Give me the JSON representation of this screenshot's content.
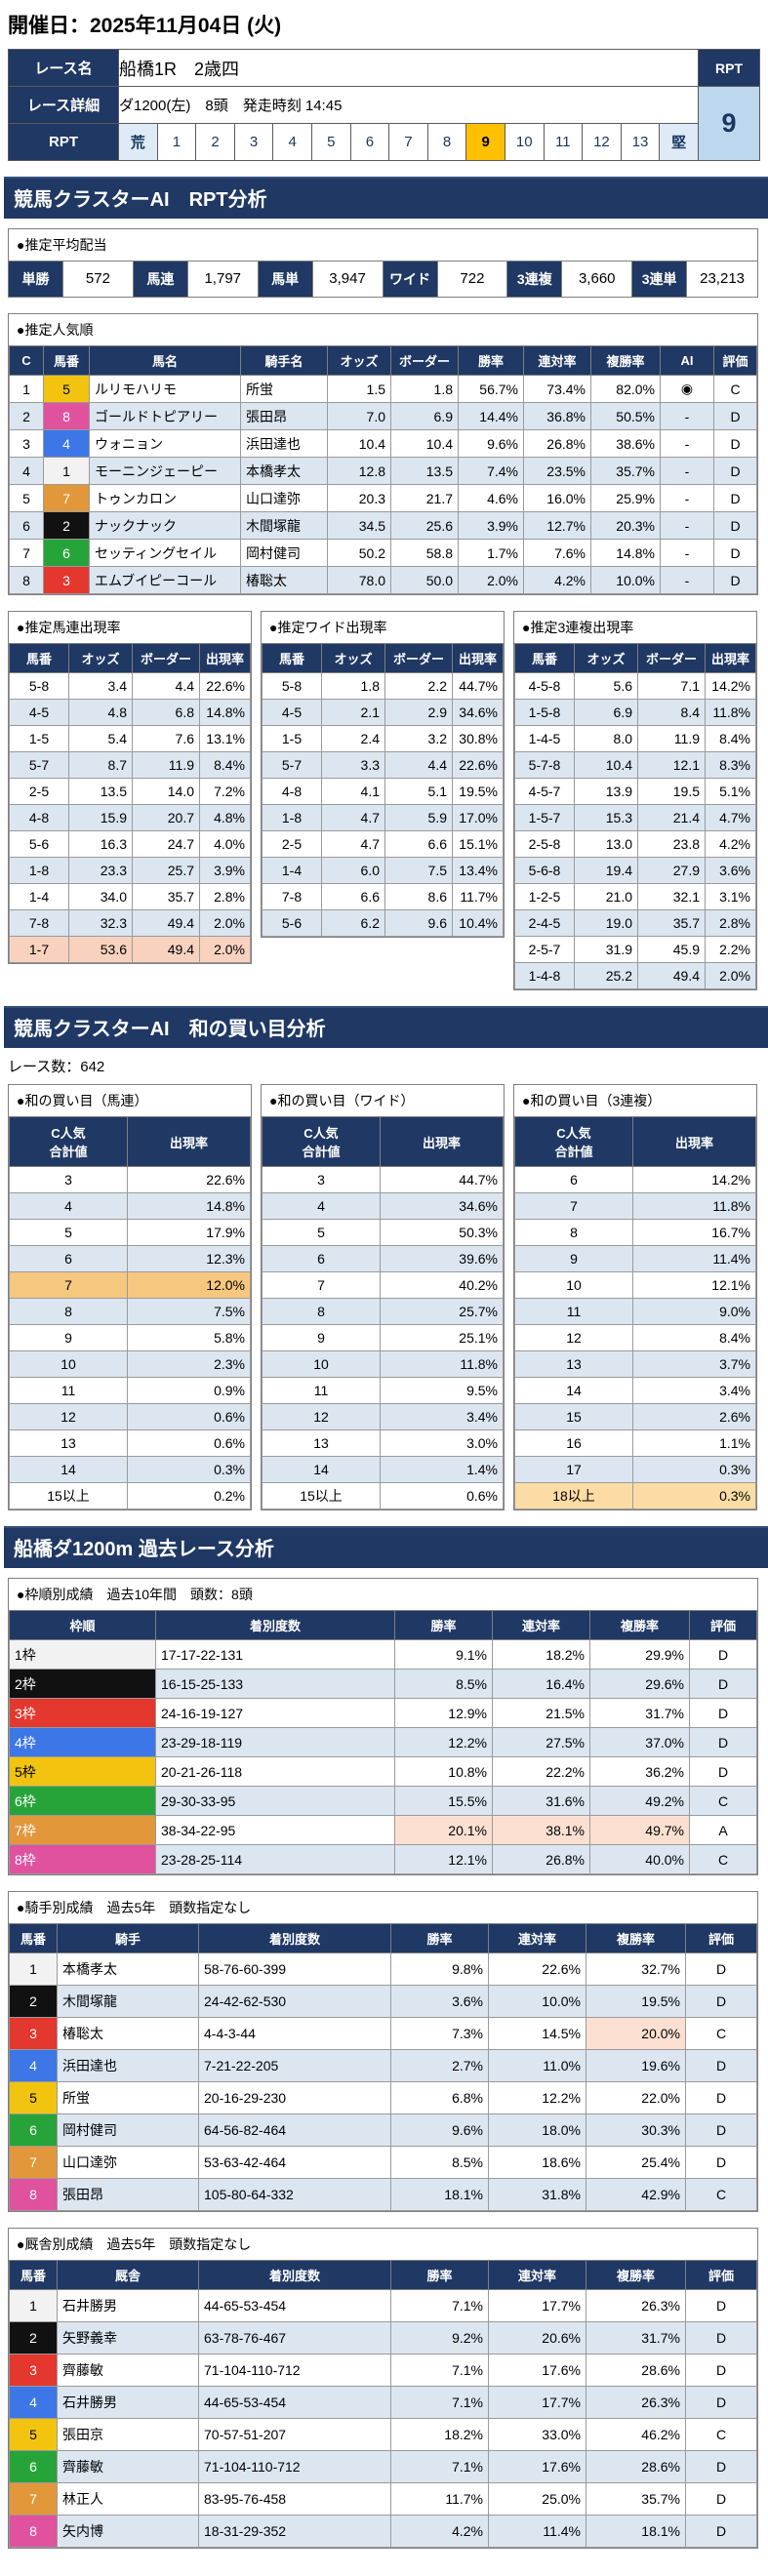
{
  "page": {
    "date_title": "開催日：2025年11月04日 (火)"
  },
  "colors": {
    "navy": "#1F3864",
    "row_alt": "#DCE6F1",
    "rpt_selected_bg": "#FFC000",
    "rpt_value_bg": "#BDD7EE",
    "highlight_salmon": "#F8D2BE",
    "highlight_amber": "#F6C77E",
    "highlight_orange": "#ED7D31",
    "highlight_peach": "#FBDCA4",
    "waku": {
      "1": "#F2F2F2",
      "2": "#111111",
      "3": "#E4372E",
      "4": "#3D76E6",
      "5": "#F2C40F",
      "6": "#27A439",
      "7": "#E2973B",
      "8": "#E0519E"
    }
  },
  "race_info": {
    "name_label": "レース名",
    "name": "船橋1R　2歳四",
    "detail_label": "レース詳細",
    "detail": "ダ1200(左)　8頭　発走時刻 14:45",
    "rpt_label": "RPT",
    "rpt_value": "9",
    "rpt_selected": "9",
    "rpt_scale": [
      "荒",
      "1",
      "2",
      "3",
      "4",
      "5",
      "6",
      "7",
      "8",
      "9",
      "10",
      "11",
      "12",
      "13",
      "堅"
    ]
  },
  "rpt_section": {
    "banner": "競馬クラスターAI　RPT分析",
    "payout": {
      "title": "●推定平均配当",
      "items": [
        {
          "label": "単勝",
          "value": "572"
        },
        {
          "label": "馬連",
          "value": "1,797"
        },
        {
          "label": "馬単",
          "value": "3,947"
        },
        {
          "label": "ワイド",
          "value": "722"
        },
        {
          "label": "3連複",
          "value": "3,660"
        },
        {
          "label": "3連単",
          "value": "23,213"
        }
      ]
    },
    "popularity": {
      "title": "●推定人気順",
      "headers": [
        "C",
        "馬番",
        "馬名",
        "騎手名",
        "オッズ",
        "ボーダー",
        "勝率",
        "連対率",
        "複勝率",
        "AI",
        "評価"
      ],
      "rows": [
        {
          "c": "1",
          "num": "5",
          "horse": "ルリモハリモ",
          "jockey": "所蛍",
          "odds": "1.5",
          "border": "1.8",
          "win": "56.7%",
          "ren": "73.4%",
          "fuku": "82.0%",
          "ai": "◉",
          "eval": "C"
        },
        {
          "c": "2",
          "num": "8",
          "horse": "ゴールドトピアリー",
          "jockey": "張田昂",
          "odds": "7.0",
          "border": "6.9",
          "win": "14.4%",
          "ren": "36.8%",
          "fuku": "50.5%",
          "ai": "-",
          "eval": "D"
        },
        {
          "c": "3",
          "num": "4",
          "horse": "ウォニョン",
          "jockey": "浜田達也",
          "odds": "10.4",
          "border": "10.4",
          "win": "9.6%",
          "ren": "26.8%",
          "fuku": "38.6%",
          "ai": "-",
          "eval": "D"
        },
        {
          "c": "4",
          "num": "1",
          "horse": "モーニンジェーピー",
          "jockey": "本橋孝太",
          "odds": "12.8",
          "border": "13.5",
          "win": "7.4%",
          "ren": "23.5%",
          "fuku": "35.7%",
          "ai": "-",
          "eval": "D"
        },
        {
          "c": "5",
          "num": "7",
          "horse": "トゥンカロン",
          "jockey": "山口達弥",
          "odds": "20.3",
          "border": "21.7",
          "win": "4.6%",
          "ren": "16.0%",
          "fuku": "25.9%",
          "ai": "-",
          "eval": "D"
        },
        {
          "c": "6",
          "num": "2",
          "horse": "ナックナック",
          "jockey": "木間塚龍",
          "odds": "34.5",
          "border": "25.6",
          "win": "3.9%",
          "ren": "12.7%",
          "fuku": "20.3%",
          "ai": "-",
          "eval": "D"
        },
        {
          "c": "7",
          "num": "6",
          "horse": "セッティングセイル",
          "jockey": "岡村健司",
          "odds": "50.2",
          "border": "58.8",
          "win": "1.7%",
          "ren": "7.6%",
          "fuku": "14.8%",
          "ai": "-",
          "eval": "D"
        },
        {
          "c": "8",
          "num": "3",
          "horse": "エムブイピーコール",
          "jockey": "椿聡太",
          "odds": "78.0",
          "border": "50.0",
          "win": "2.0%",
          "ren": "4.2%",
          "fuku": "10.0%",
          "ai": "-",
          "eval": "D"
        }
      ]
    },
    "umaren": {
      "title": "●推定馬連出現率",
      "headers": [
        "馬番",
        "オッズ",
        "ボーダー",
        "出現率"
      ],
      "highlight": "1-7",
      "rows": [
        [
          "5-8",
          "3.4",
          "4.4",
          "22.6%"
        ],
        [
          "4-5",
          "4.8",
          "6.8",
          "14.8%"
        ],
        [
          "1-5",
          "5.4",
          "7.6",
          "13.1%"
        ],
        [
          "5-7",
          "8.7",
          "11.9",
          "8.4%"
        ],
        [
          "2-5",
          "13.5",
          "14.0",
          "7.2%"
        ],
        [
          "4-8",
          "15.9",
          "20.7",
          "4.8%"
        ],
        [
          "5-6",
          "16.3",
          "24.7",
          "4.0%"
        ],
        [
          "1-8",
          "23.3",
          "25.7",
          "3.9%"
        ],
        [
          "1-4",
          "34.0",
          "35.7",
          "2.8%"
        ],
        [
          "7-8",
          "32.3",
          "49.4",
          "2.0%"
        ],
        [
          "1-7",
          "53.6",
          "49.4",
          "2.0%"
        ]
      ]
    },
    "wide": {
      "title": "●推定ワイド出現率",
      "headers": [
        "馬番",
        "オッズ",
        "ボーダー",
        "出現率"
      ],
      "rows": [
        [
          "5-8",
          "1.8",
          "2.2",
          "44.7%"
        ],
        [
          "4-5",
          "2.1",
          "2.9",
          "34.6%"
        ],
        [
          "1-5",
          "2.4",
          "3.2",
          "30.8%"
        ],
        [
          "5-7",
          "3.3",
          "4.4",
          "22.6%"
        ],
        [
          "4-8",
          "4.1",
          "5.1",
          "19.5%"
        ],
        [
          "1-8",
          "4.7",
          "5.9",
          "17.0%"
        ],
        [
          "2-5",
          "4.7",
          "6.6",
          "15.1%"
        ],
        [
          "1-4",
          "6.0",
          "7.5",
          "13.4%"
        ],
        [
          "7-8",
          "6.6",
          "8.6",
          "11.7%"
        ],
        [
          "5-6",
          "6.2",
          "9.6",
          "10.4%"
        ]
      ]
    },
    "sanrenpuku": {
      "title": "●推定3連複出現率",
      "headers": [
        "馬番",
        "オッズ",
        "ボーダー",
        "出現率"
      ],
      "rows": [
        [
          "4-5-8",
          "5.6",
          "7.1",
          "14.2%"
        ],
        [
          "1-5-8",
          "6.9",
          "8.4",
          "11.8%"
        ],
        [
          "1-4-5",
          "8.0",
          "11.9",
          "8.4%"
        ],
        [
          "5-7-8",
          "10.4",
          "12.1",
          "8.3%"
        ],
        [
          "4-5-7",
          "13.9",
          "19.5",
          "5.1%"
        ],
        [
          "1-5-7",
          "15.3",
          "21.4",
          "4.7%"
        ],
        [
          "2-5-8",
          "13.0",
          "23.8",
          "4.2%"
        ],
        [
          "5-6-8",
          "19.4",
          "27.9",
          "3.6%"
        ],
        [
          "1-2-5",
          "21.0",
          "32.1",
          "3.1%"
        ],
        [
          "2-4-5",
          "19.0",
          "35.7",
          "2.8%"
        ],
        [
          "2-5-7",
          "31.9",
          "45.9",
          "2.2%"
        ],
        [
          "1-4-8",
          "25.2",
          "49.4",
          "2.0%"
        ]
      ]
    }
  },
  "wa_section": {
    "banner": "競馬クラスターAI　和の買い目分析",
    "race_count": "レース数：642",
    "header": "C人気\n合計値",
    "rate_header": "出現率",
    "umaren": {
      "title": "●和の買い目（馬連）",
      "rows": [
        [
          "3",
          "22.6%"
        ],
        [
          "4",
          "14.8%"
        ],
        [
          "5",
          "17.9%"
        ],
        [
          "6",
          "12.3%"
        ],
        [
          "7",
          "12.0%",
          "amber"
        ],
        [
          "8",
          "7.5%"
        ],
        [
          "9",
          "5.8%"
        ],
        [
          "10",
          "2.3%"
        ],
        [
          "11",
          "0.9%"
        ],
        [
          "12",
          "0.6%"
        ],
        [
          "13",
          "0.6%"
        ],
        [
          "14",
          "0.3%"
        ],
        [
          "15以上",
          "0.2%"
        ]
      ]
    },
    "wide": {
      "title": "●和の買い目（ワイド）",
      "rows": [
        [
          "3",
          "44.7%"
        ],
        [
          "4",
          "34.6%"
        ],
        [
          "5",
          "50.3%"
        ],
        [
          "6",
          "39.6%"
        ],
        [
          "7",
          "40.2%"
        ],
        [
          "8",
          "25.7%"
        ],
        [
          "9",
          "25.1%"
        ],
        [
          "10",
          "11.8%"
        ],
        [
          "11",
          "9.5%"
        ],
        [
          "12",
          "3.4%"
        ],
        [
          "13",
          "3.0%"
        ],
        [
          "14",
          "1.4%"
        ],
        [
          "15以上",
          "0.6%"
        ]
      ]
    },
    "sanrenpuku": {
      "title": "●和の買い目（3連複）",
      "rows": [
        [
          "6",
          "14.2%"
        ],
        [
          "7",
          "11.8%"
        ],
        [
          "8",
          "16.7%"
        ],
        [
          "9",
          "11.4%"
        ],
        [
          "10",
          "12.1%"
        ],
        [
          "11",
          "9.0%"
        ],
        [
          "12",
          "8.4%"
        ],
        [
          "13",
          "3.7%"
        ],
        [
          "14",
          "3.4%"
        ],
        [
          "15",
          "2.6%",
          "orange"
        ],
        [
          "16",
          "1.1%"
        ],
        [
          "17",
          "0.3%"
        ],
        [
          "18以上",
          "0.3%",
          "peach"
        ]
      ]
    }
  },
  "past_section": {
    "banner": "船橋ダ1200m 過去レース分析",
    "waku": {
      "title": "●枠順別成績　過去10年間　頭数：8頭",
      "headers": [
        "枠順",
        "着別度数",
        "勝率",
        "連対率",
        "複勝率",
        "評価"
      ],
      "rows": [
        {
          "waku": "1枠",
          "n": "1",
          "record": "17-17-22-131",
          "win": "9.1%",
          "ren": "18.2%",
          "fuku": "29.9%",
          "eval": "D"
        },
        {
          "waku": "2枠",
          "n": "2",
          "record": "16-15-25-133",
          "win": "8.5%",
          "ren": "16.4%",
          "fuku": "29.6%",
          "eval": "D"
        },
        {
          "waku": "3枠",
          "n": "3",
          "record": "24-16-19-127",
          "win": "12.9%",
          "ren": "21.5%",
          "fuku": "31.7%",
          "eval": "D"
        },
        {
          "waku": "4枠",
          "n": "4",
          "record": "23-29-18-119",
          "win": "12.2%",
          "ren": "27.5%",
          "fuku": "37.0%",
          "eval": "D"
        },
        {
          "waku": "5枠",
          "n": "5",
          "record": "20-21-26-118",
          "win": "10.8%",
          "ren": "22.2%",
          "fuku": "36.2%",
          "eval": "D"
        },
        {
          "waku": "6枠",
          "n": "6",
          "record": "29-30-33-95",
          "win": "15.5%",
          "ren": "31.6%",
          "fuku": "49.2%",
          "eval": "C"
        },
        {
          "waku": "7枠",
          "n": "7",
          "record": "38-34-22-95",
          "win": "20.1%",
          "ren": "38.1%",
          "fuku": "49.7%",
          "eval": "A",
          "hl": [
            "win",
            "ren",
            "fuku"
          ]
        },
        {
          "waku": "8枠",
          "n": "8",
          "record": "23-28-25-114",
          "win": "12.1%",
          "ren": "26.8%",
          "fuku": "40.0%",
          "eval": "C"
        }
      ]
    },
    "jockey": {
      "title": "●騎手別成績　過去5年　頭数指定なし",
      "headers": [
        "馬番",
        "騎手",
        "着別度数",
        "勝率",
        "連対率",
        "複勝率",
        "評価"
      ],
      "rows": [
        {
          "num": "1",
          "name": "本橋孝太",
          "record": "58-76-60-399",
          "win": "9.8%",
          "ren": "22.6%",
          "fuku": "32.7%",
          "eval": "D"
        },
        {
          "num": "2",
          "name": "木間塚龍",
          "record": "24-42-62-530",
          "win": "3.6%",
          "ren": "10.0%",
          "fuku": "19.5%",
          "eval": "D"
        },
        {
          "num": "3",
          "name": "椿聡太",
          "record": "4-4-3-44",
          "win": "7.3%",
          "ren": "14.5%",
          "fuku": "20.0%",
          "eval": "C",
          "hl": [
            "fuku"
          ]
        },
        {
          "num": "4",
          "name": "浜田達也",
          "record": "7-21-22-205",
          "win": "2.7%",
          "ren": "11.0%",
          "fuku": "19.6%",
          "eval": "D"
        },
        {
          "num": "5",
          "name": "所蛍",
          "record": "20-16-29-230",
          "win": "6.8%",
          "ren": "12.2%",
          "fuku": "22.0%",
          "eval": "D"
        },
        {
          "num": "6",
          "name": "岡村健司",
          "record": "64-56-82-464",
          "win": "9.6%",
          "ren": "18.0%",
          "fuku": "30.3%",
          "eval": "D"
        },
        {
          "num": "7",
          "name": "山口達弥",
          "record": "53-63-42-464",
          "win": "8.5%",
          "ren": "18.6%",
          "fuku": "25.4%",
          "eval": "D"
        },
        {
          "num": "8",
          "name": "張田昂",
          "record": "105-80-64-332",
          "win": "18.1%",
          "ren": "31.8%",
          "fuku": "42.9%",
          "eval": "C"
        }
      ]
    },
    "stable": {
      "title": "●厩舎別成績　過去5年　頭数指定なし",
      "headers": [
        "馬番",
        "厩舎",
        "着別度数",
        "勝率",
        "連対率",
        "複勝率",
        "評価"
      ],
      "rows": [
        {
          "num": "1",
          "name": "石井勝男",
          "record": "44-65-53-454",
          "win": "7.1%",
          "ren": "17.7%",
          "fuku": "26.3%",
          "eval": "D"
        },
        {
          "num": "2",
          "name": "矢野義幸",
          "record": "63-78-76-467",
          "win": "9.2%",
          "ren": "20.6%",
          "fuku": "31.7%",
          "eval": "D"
        },
        {
          "num": "3",
          "name": "齊藤敏",
          "record": "71-104-110-712",
          "win": "7.1%",
          "ren": "17.6%",
          "fuku": "28.6%",
          "eval": "D"
        },
        {
          "num": "4",
          "name": "石井勝男",
          "record": "44-65-53-454",
          "win": "7.1%",
          "ren": "17.7%",
          "fuku": "26.3%",
          "eval": "D"
        },
        {
          "num": "5",
          "name": "張田京",
          "record": "70-57-51-207",
          "win": "18.2%",
          "ren": "33.0%",
          "fuku": "46.2%",
          "eval": "C"
        },
        {
          "num": "6",
          "name": "齊藤敏",
          "record": "71-104-110-712",
          "win": "7.1%",
          "ren": "17.6%",
          "fuku": "28.6%",
          "eval": "D"
        },
        {
          "num": "7",
          "name": "林正人",
          "record": "83-95-76-458",
          "win": "11.7%",
          "ren": "25.0%",
          "fuku": "35.7%",
          "eval": "D"
        },
        {
          "num": "8",
          "name": "矢内博",
          "record": "18-31-29-352",
          "win": "4.2%",
          "ren": "11.4%",
          "fuku": "18.1%",
          "eval": "D"
        }
      ]
    }
  }
}
